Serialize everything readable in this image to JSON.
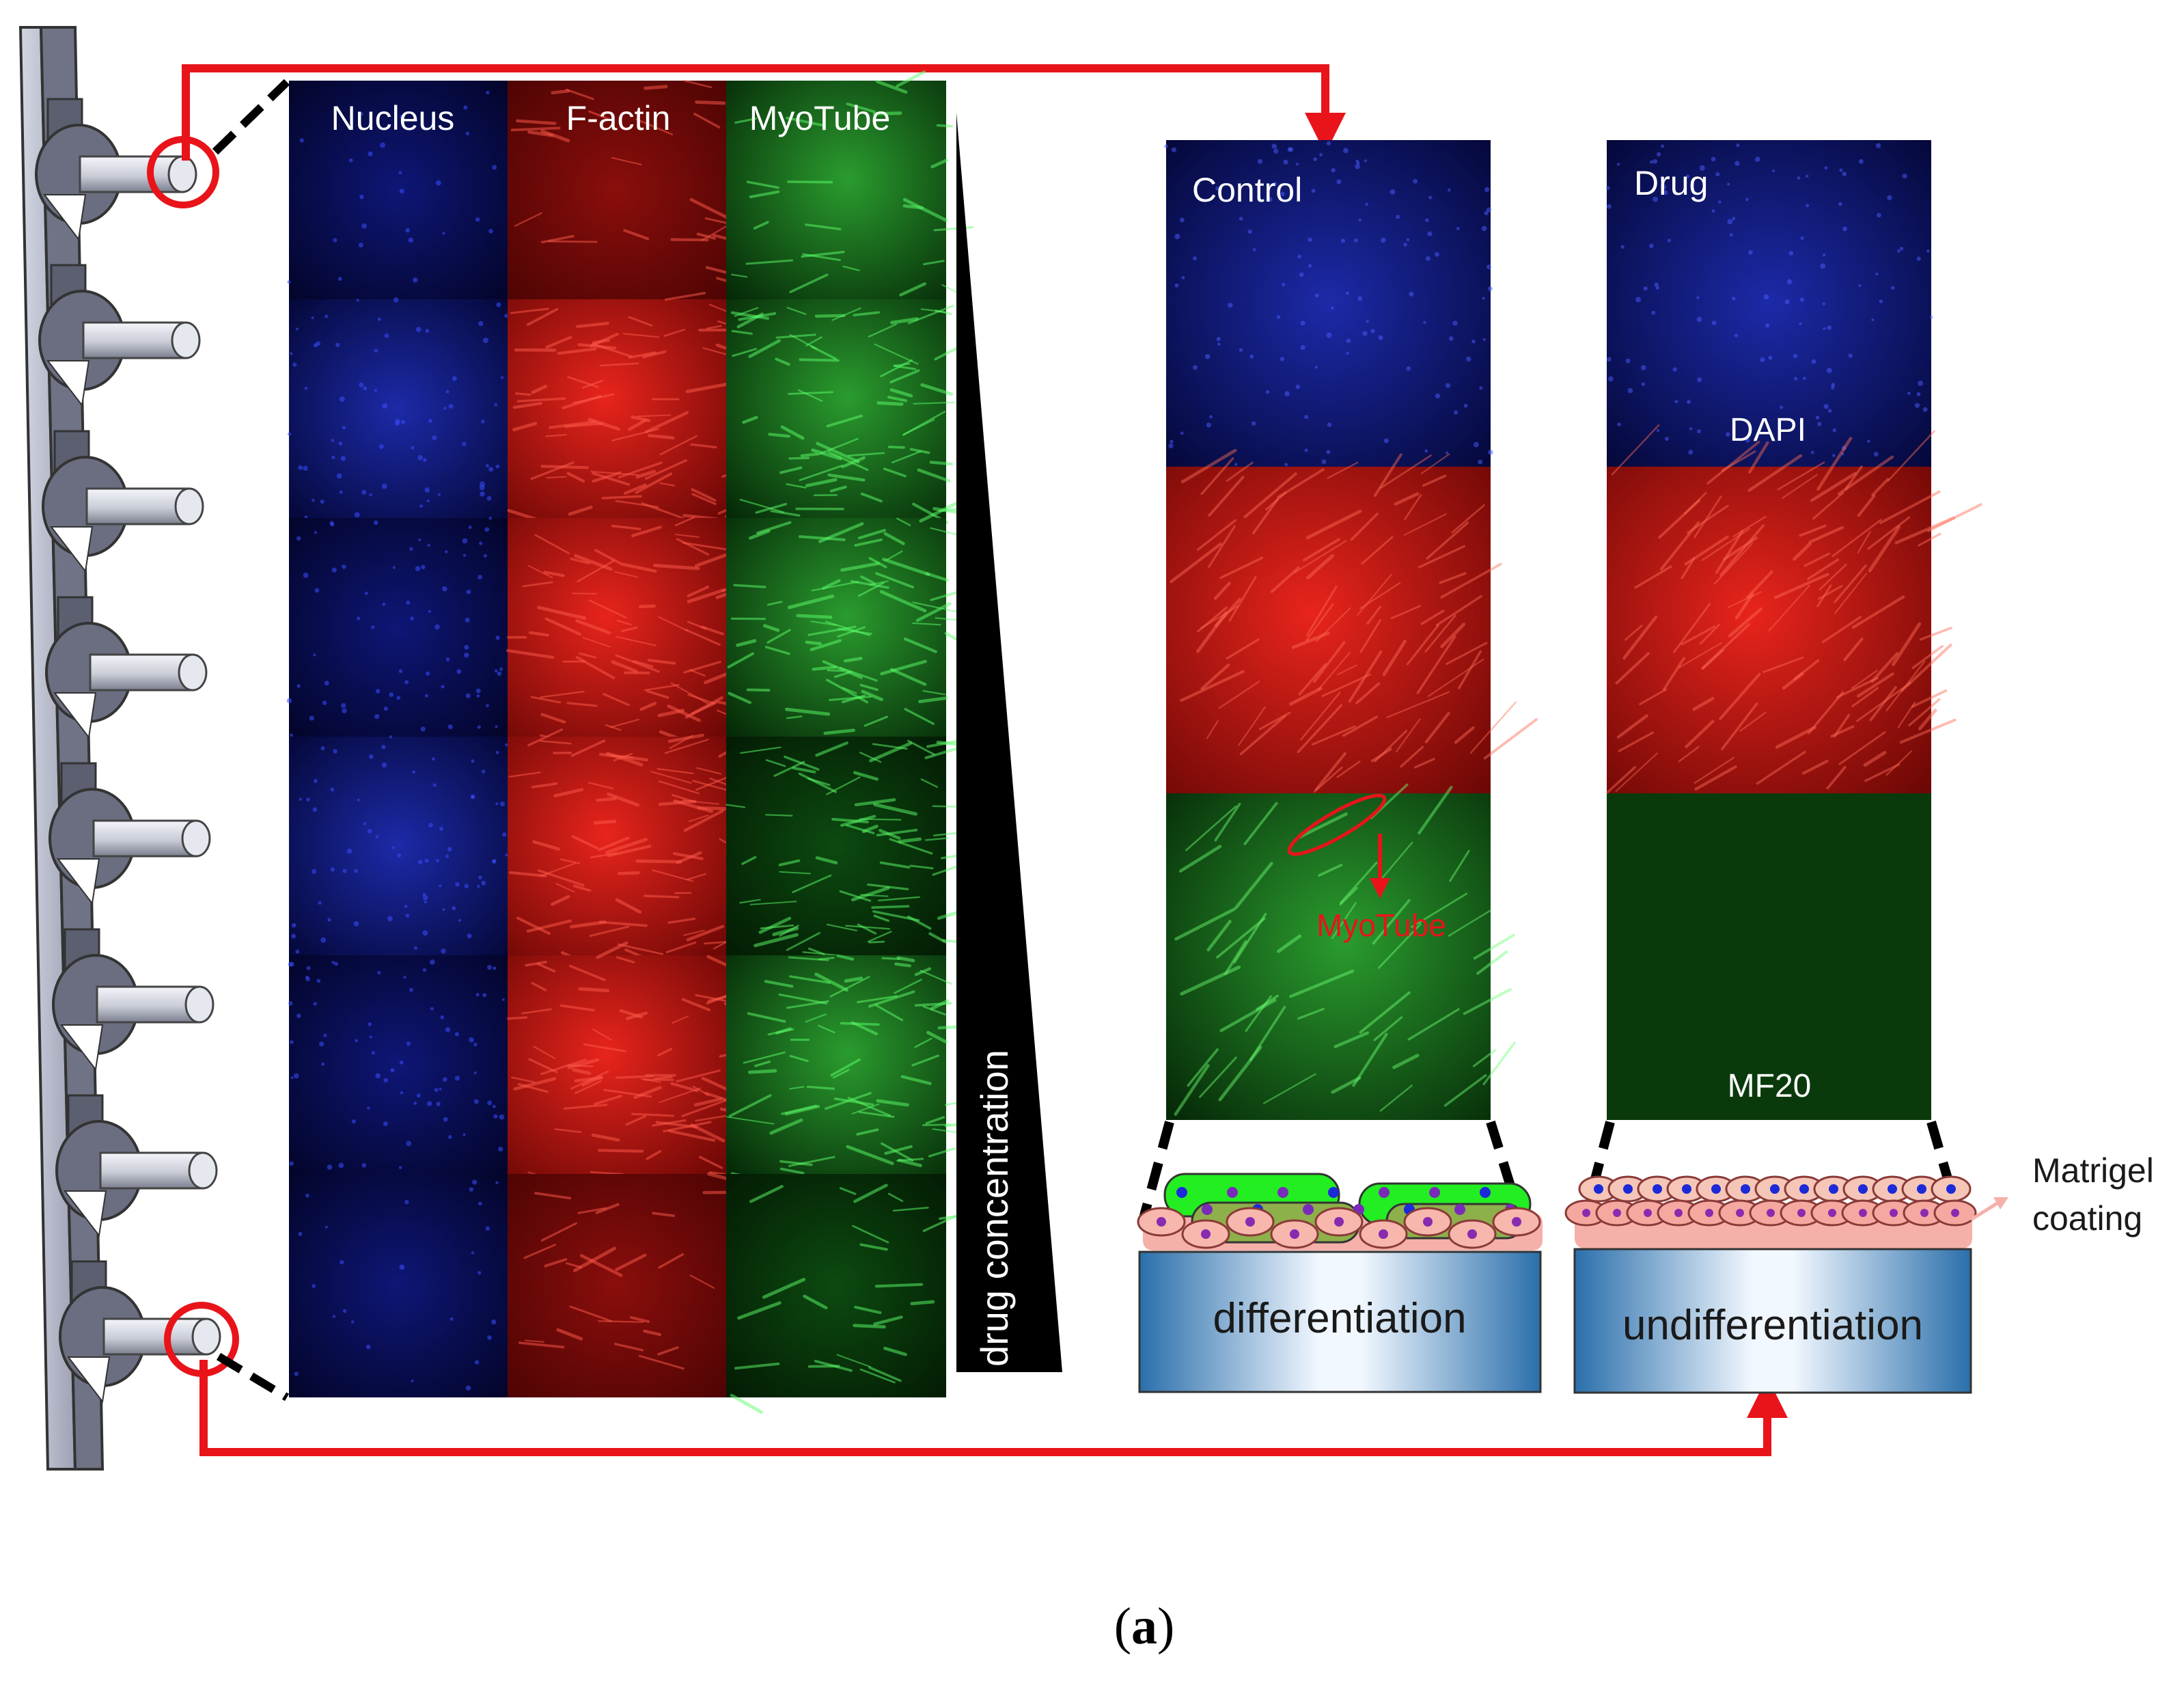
{
  "grid": {
    "column_labels": [
      "Nucleus",
      "F-actin",
      "MyoTube"
    ],
    "rows": 6
  },
  "gradient_label": "drug concentration",
  "panels": {
    "control": {
      "title": "Control",
      "annotation": "MyoTube",
      "layer_label": "differentiation"
    },
    "drug": {
      "title": "Drug",
      "dapi_label": "DAPI",
      "mf20_label": "MF20",
      "layer_label": "undifferentiation"
    }
  },
  "coating_label": [
    "Matrigel",
    "coating"
  ],
  "caption": {
    "open": "(",
    "letter": "a",
    "close": ")"
  },
  "colors": {
    "arrow": "#e8141a",
    "nucleus_stain": "#0a0f62",
    "factin_stain": "#a8100e",
    "myotube_stain": "#0b5a12",
    "coating": "#f6b0aa",
    "substrate": "#2a73b0"
  }
}
